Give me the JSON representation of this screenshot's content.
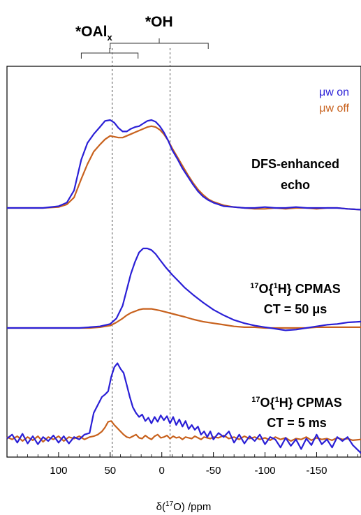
{
  "chart_data": {
    "type": "line",
    "xlabel_main": "δ(",
    "xlabel_sup": "17",
    "xlabel_end": "O) /ppm",
    "xlim": [
      150,
      -193
    ],
    "x_ticks": [
      {
        "value": 100,
        "label": "100"
      },
      {
        "value": 50,
        "label": "50"
      },
      {
        "value": 0,
        "label": "0"
      },
      {
        "value": -50,
        "label": "-50"
      },
      {
        "value": -100,
        "label": "-100"
      },
      {
        "value": -150,
        "label": "-150"
      }
    ],
    "reference_lines": [
      48,
      -8
    ],
    "legend": [
      {
        "label": "μw on",
        "color": "#2a1fd6"
      },
      {
        "label": "μw off",
        "color": "#c8621e"
      }
    ],
    "site_labels": {
      "oalx": {
        "main": "*OAl",
        "sub": "x",
        "bracket_from": 78,
        "bracket_to": 23
      },
      "oh": {
        "main": "*OH",
        "bracket_from": 50,
        "bracket_to": -45
      }
    },
    "panels": [
      {
        "label_line1": "DFS-enhanced",
        "label_line2": "echo",
        "series": [
          {
            "name": "μw on",
            "color": "#2a1fd6",
            "x": [
              150,
              130,
              115,
              100,
              92,
              85,
              78,
              72,
              66,
              60,
              55,
              50,
              46,
              42,
              38,
              34,
              30,
              26,
              22,
              18,
              14,
              10,
              6,
              2,
              -2,
              -6,
              -10,
              -15,
              -20,
              -25,
              -30,
              -35,
              -40,
              -45,
              -50,
              -55,
              -60,
              -70,
              -80,
              -90,
              -100,
              -110,
              -120,
              -130,
              -140,
              -150,
              -160,
              -170,
              -180,
              -193
            ],
            "y": [
              0.0,
              0.0,
              0.0,
              0.02,
              0.06,
              0.2,
              0.55,
              0.74,
              0.84,
              0.92,
              0.99,
              1.0,
              0.97,
              0.91,
              0.87,
              0.87,
              0.9,
              0.92,
              0.93,
              0.96,
              0.99,
              1.0,
              0.98,
              0.93,
              0.86,
              0.77,
              0.66,
              0.56,
              0.45,
              0.36,
              0.27,
              0.19,
              0.13,
              0.09,
              0.06,
              0.04,
              0.02,
              0.01,
              0.0,
              0.0,
              0.01,
              0.0,
              0.0,
              0.01,
              0.0,
              0.0,
              0.0,
              0.0,
              -0.01,
              -0.02
            ]
          },
          {
            "name": "μw off",
            "color": "#c8621e",
            "x": [
              150,
              130,
              115,
              100,
              92,
              85,
              78,
              72,
              66,
              60,
              55,
              50,
              46,
              42,
              38,
              34,
              30,
              26,
              22,
              18,
              14,
              10,
              6,
              2,
              -2,
              -6,
              -10,
              -15,
              -20,
              -25,
              -30,
              -35,
              -40,
              -45,
              -50,
              -55,
              -60,
              -70,
              -80,
              -90,
              -100,
              -110,
              -120,
              -130,
              -140,
              -150,
              -160,
              -170,
              -180,
              -193
            ],
            "y": [
              0.0,
              0.0,
              0.0,
              0.01,
              0.04,
              0.12,
              0.33,
              0.5,
              0.64,
              0.72,
              0.78,
              0.82,
              0.81,
              0.8,
              0.8,
              0.82,
              0.84,
              0.86,
              0.88,
              0.9,
              0.92,
              0.93,
              0.92,
              0.89,
              0.84,
              0.77,
              0.68,
              0.58,
              0.48,
              0.38,
              0.29,
              0.21,
              0.15,
              0.1,
              0.07,
              0.05,
              0.03,
              0.01,
              0.0,
              -0.01,
              -0.01,
              0.0,
              -0.01,
              0.0,
              0.0,
              -0.01,
              0.0,
              0.0,
              -0.01,
              -0.02
            ]
          }
        ]
      },
      {
        "label_line1": "17|O{|1|H} CPMAS",
        "label_line2": "CT = 50 μs",
        "series": [
          {
            "name": "μw on",
            "color": "#2a1fd6",
            "x": [
              150,
              120,
              100,
              80,
              70,
              60,
              50,
              44,
              38,
              34,
              30,
              26,
              22,
              18,
              14,
              10,
              6,
              2,
              -4,
              -10,
              -16,
              -22,
              -30,
              -40,
              -50,
              -60,
              -70,
              -80,
              -90,
              -100,
              -110,
              -120,
              -130,
              -140,
              -150,
              -160,
              -170,
              -180,
              -193
            ],
            "y": [
              0.0,
              0.0,
              0.0,
              0.0,
              0.01,
              0.02,
              0.05,
              0.12,
              0.28,
              0.48,
              0.68,
              0.83,
              0.95,
              1.0,
              1.0,
              0.98,
              0.93,
              0.86,
              0.76,
              0.67,
              0.59,
              0.51,
              0.42,
              0.32,
              0.23,
              0.16,
              0.1,
              0.06,
              0.03,
              0.01,
              -0.01,
              -0.03,
              -0.02,
              0.0,
              0.02,
              0.04,
              0.05,
              0.07,
              0.08
            ]
          },
          {
            "name": "μw off",
            "color": "#c8621e",
            "x": [
              150,
              120,
              100,
              80,
              70,
              60,
              50,
              44,
              38,
              34,
              30,
              26,
              22,
              18,
              14,
              10,
              6,
              2,
              -4,
              -10,
              -16,
              -22,
              -30,
              -40,
              -50,
              -60,
              -70,
              -80,
              -90,
              -100,
              -110,
              -120,
              -130,
              -140,
              -150,
              -160,
              -170,
              -180,
              -193
            ],
            "y": [
              0.0,
              0.0,
              0.0,
              0.0,
              0.0,
              0.01,
              0.03,
              0.07,
              0.12,
              0.16,
              0.19,
              0.21,
              0.23,
              0.24,
              0.24,
              0.24,
              0.23,
              0.22,
              0.2,
              0.18,
              0.16,
              0.14,
              0.11,
              0.08,
              0.06,
              0.04,
              0.02,
              0.01,
              0.01,
              0.0,
              0.0,
              0.0,
              0.0,
              0.0,
              0.01,
              0.01,
              0.01,
              0.01,
              0.01
            ]
          }
        ]
      },
      {
        "label_line1": "17|O{|1|H} CPMAS",
        "label_line2": "CT = 5 ms",
        "series": [
          {
            "name": "μw on",
            "color": "#2a1fd6",
            "x": [
              150,
              145,
              140,
              135,
              130,
              125,
              120,
              115,
              110,
              105,
              100,
              95,
              90,
              85,
              80,
              75,
              70,
              66,
              62,
              58,
              55,
              52,
              49,
              46,
              43,
              40,
              37,
              34,
              31,
              28,
              25,
              22,
              19,
              16,
              13,
              10,
              7,
              4,
              1,
              -2,
              -5,
              -8,
              -11,
              -14,
              -17,
              -20,
              -23,
              -26,
              -29,
              -32,
              -35,
              -38,
              -41,
              -44,
              -47,
              -50,
              -55,
              -60,
              -65,
              -70,
              -75,
              -80,
              -85,
              -90,
              -95,
              -100,
              -105,
              -110,
              -115,
              -120,
              -125,
              -130,
              -135,
              -140,
              -145,
              -150,
              -155,
              -160,
              -165,
              -170,
              -175,
              -180,
              -185,
              -193
            ],
            "y": [
              0.03,
              0.08,
              -0.02,
              0.09,
              -0.03,
              0.06,
              -0.04,
              0.05,
              0.0,
              0.07,
              -0.02,
              0.06,
              -0.03,
              0.05,
              0.02,
              0.08,
              0.1,
              0.35,
              0.45,
              0.55,
              0.58,
              0.62,
              0.8,
              0.92,
              0.97,
              0.9,
              0.85,
              0.7,
              0.55,
              0.42,
              0.35,
              0.3,
              0.33,
              0.25,
              0.29,
              0.22,
              0.3,
              0.24,
              0.32,
              0.26,
              0.31,
              0.22,
              0.3,
              0.2,
              0.27,
              0.18,
              0.25,
              0.15,
              0.2,
              0.14,
              0.18,
              0.08,
              0.12,
              0.05,
              0.12,
              0.02,
              0.1,
              0.05,
              0.12,
              -0.02,
              0.08,
              -0.03,
              0.06,
              0.0,
              0.08,
              -0.04,
              0.05,
              0.02,
              -0.08,
              0.04,
              -0.06,
              0.02,
              -0.1,
              0.03,
              -0.05,
              0.08,
              -0.04,
              0.02,
              -0.08,
              0.05,
              0.0,
              0.05,
              -0.05,
              -0.15
            ]
          },
          {
            "name": "μw off",
            "color": "#c8621e",
            "x": [
              150,
              145,
              140,
              135,
              130,
              125,
              120,
              115,
              110,
              105,
              100,
              95,
              90,
              85,
              80,
              75,
              70,
              66,
              62,
              58,
              55,
              52,
              49,
              46,
              43,
              40,
              37,
              34,
              31,
              28,
              25,
              22,
              19,
              16,
              13,
              10,
              7,
              4,
              1,
              -2,
              -5,
              -8,
              -11,
              -14,
              -17,
              -20,
              -23,
              -26,
              -29,
              -32,
              -35,
              -38,
              -41,
              -44,
              -47,
              -50,
              -55,
              -60,
              -65,
              -70,
              -75,
              -80,
              -85,
              -90,
              -95,
              -100,
              -105,
              -110,
              -115,
              -120,
              -125,
              -130,
              -135,
              -140,
              -145,
              -150,
              -155,
              -160,
              -165,
              -170,
              -175,
              -180,
              -185,
              -193
            ],
            "y": [
              0.05,
              0.02,
              0.06,
              0.0,
              0.05,
              0.01,
              0.06,
              -0.01,
              0.05,
              0.02,
              0.06,
              0.0,
              0.05,
              0.03,
              0.06,
              0.02,
              0.05,
              0.06,
              0.08,
              0.12,
              0.17,
              0.24,
              0.25,
              0.2,
              0.16,
              0.12,
              0.08,
              0.05,
              0.04,
              0.06,
              0.08,
              0.04,
              0.03,
              0.07,
              0.04,
              0.02,
              0.06,
              0.08,
              0.04,
              0.05,
              0.07,
              0.03,
              0.06,
              0.04,
              0.05,
              0.02,
              0.05,
              0.04,
              0.03,
              0.06,
              0.04,
              0.02,
              0.05,
              0.04,
              0.03,
              0.05,
              0.04,
              0.07,
              0.03,
              0.05,
              0.02,
              0.06,
              0.03,
              0.05,
              0.02,
              0.04,
              0.01,
              0.05,
              0.02,
              0.04,
              0.0,
              0.03,
              0.02,
              0.05,
              0.01,
              0.04,
              0.02,
              0.03,
              0.01,
              0.04,
              0.02,
              0.03,
              0.01,
              0.02
            ]
          }
        ]
      }
    ]
  }
}
